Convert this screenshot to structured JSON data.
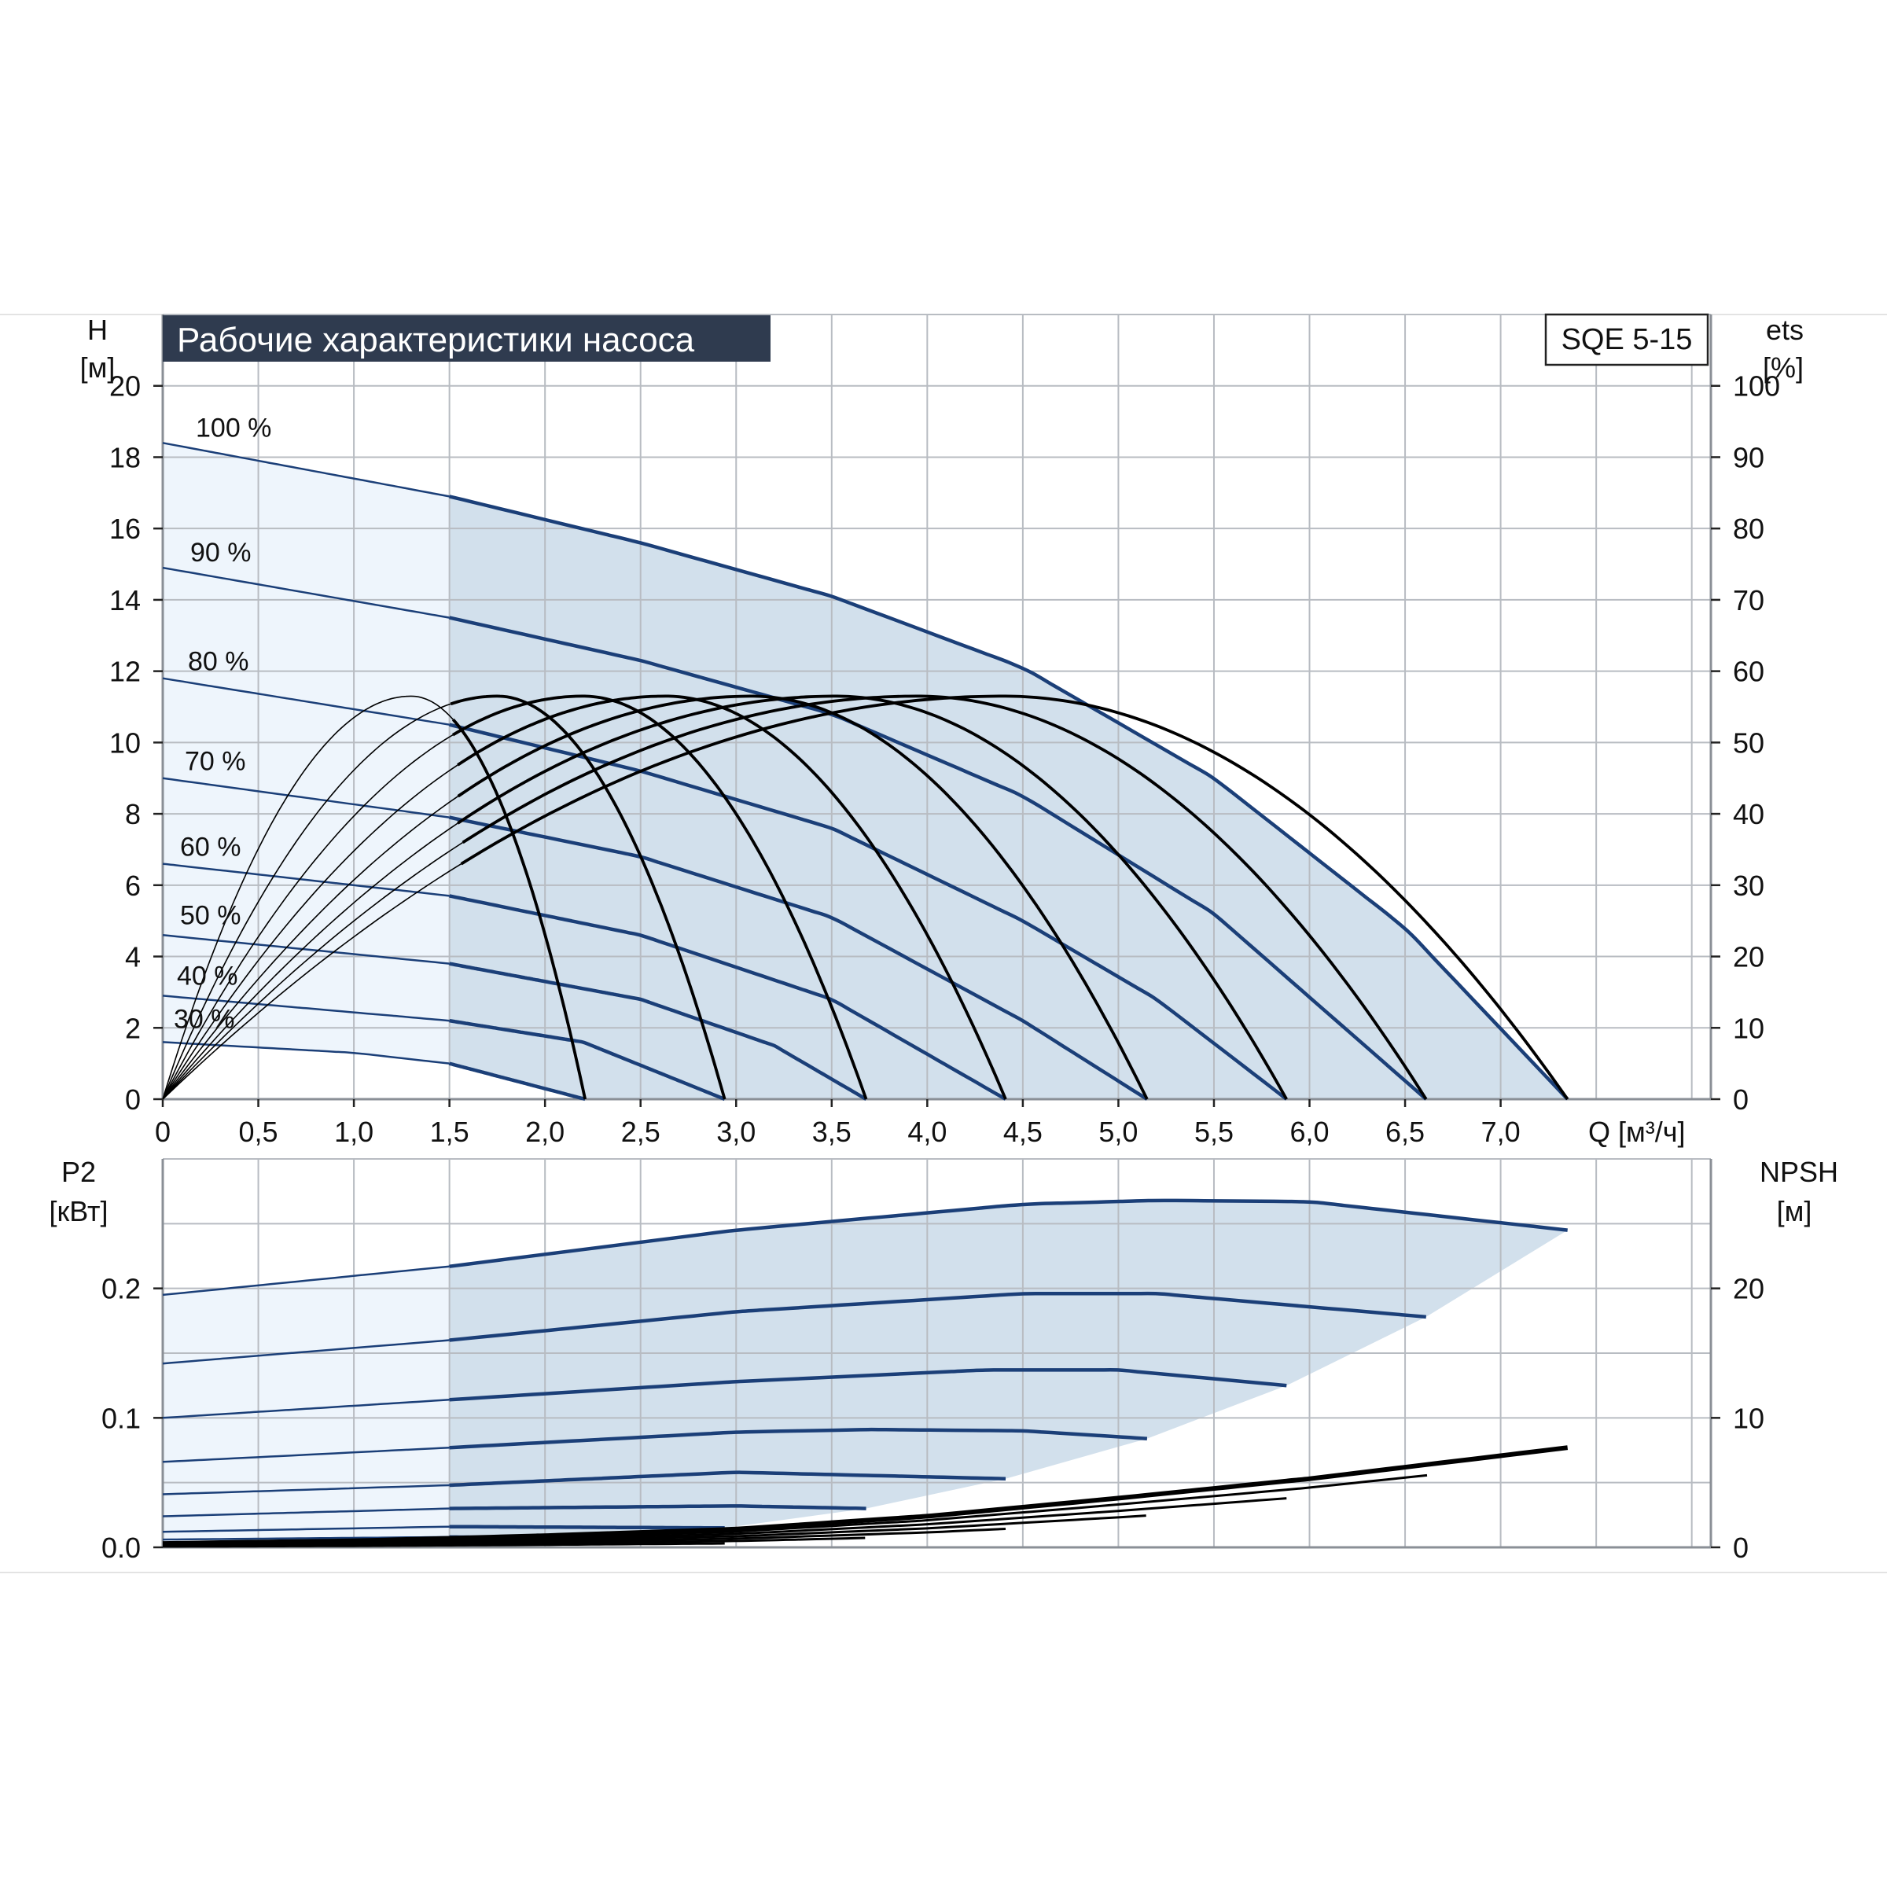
{
  "title": "Рабочие характеристики насоса",
  "model": "SQE 5-15",
  "colors": {
    "title_bg": "#2f3b4f",
    "title_fg": "#ffffff",
    "grid": "#b8bcc2",
    "frame": "#8a8f96",
    "area_light": "#eef5fc",
    "area_dark": "#d2e0ec",
    "pump_curve": "#1b3f78",
    "eff_curve": "#000000",
    "npsh_curve": "#000000"
  },
  "top": {
    "left_label_1": "H",
    "left_label_2": "[м]",
    "right_label_1": "ets",
    "right_label_2": "[%]",
    "x_label": "Q [м³/ч]",
    "x_ticks": [
      "0",
      "0,5",
      "1,0",
      "1,5",
      "2,0",
      "2,5",
      "3,0",
      "3,5",
      "4,0",
      "4,5",
      "5,0",
      "5,5",
      "6,0",
      "6,5",
      "7,0"
    ],
    "left_ticks": [
      "0",
      "2",
      "4",
      "6",
      "8",
      "10",
      "12",
      "14",
      "16",
      "18",
      "20"
    ],
    "right_ticks": [
      "0",
      "10",
      "20",
      "30",
      "40",
      "50",
      "60",
      "70",
      "80",
      "90",
      "100"
    ]
  },
  "bottom": {
    "left_label_1": "P2",
    "left_label_2": "[кВт]",
    "right_label_1": "NPSH",
    "right_label_2": "[м]",
    "left_ticks": [
      "0.0",
      "0.1",
      "0.2"
    ],
    "right_ticks": [
      "0",
      "10",
      "20"
    ]
  },
  "chart_data": [
    {
      "type": "line",
      "xlabel": "Q [м³/ч]",
      "ylabel": "H [м]",
      "y2label": "ets [%]",
      "xlim": [
        0,
        8.1
      ],
      "ylim": [
        0,
        22
      ],
      "y2lim": [
        0,
        110
      ],
      "grid": true,
      "curves": [
        {
          "name": "100 %",
          "x": [
            0,
            1.5,
            2.5,
            3.5,
            4.5,
            5.5,
            6.5,
            7.35
          ],
          "y": [
            18.4,
            16.9,
            15.6,
            14.1,
            12.1,
            9.0,
            4.8,
            0
          ]
        },
        {
          "name": "90 %",
          "x": [
            0,
            1.5,
            2.5,
            3.5,
            4.5,
            5.5,
            6.61
          ],
          "y": [
            14.9,
            13.5,
            12.3,
            10.8,
            8.5,
            5.2,
            0
          ]
        },
        {
          "name": "80 %",
          "x": [
            0,
            1.5,
            2.5,
            3.5,
            4.5,
            5.2,
            5.88
          ],
          "y": [
            11.8,
            10.5,
            9.2,
            7.6,
            5.0,
            2.8,
            0
          ]
        },
        {
          "name": "70 %",
          "x": [
            0,
            1.5,
            2.5,
            3.5,
            4.5,
            5.15
          ],
          "y": [
            9.0,
            7.9,
            6.8,
            5.1,
            2.2,
            0
          ]
        },
        {
          "name": "60 %",
          "x": [
            0,
            1.5,
            2.5,
            3.5,
            4.41
          ],
          "y": [
            6.6,
            5.7,
            4.6,
            2.8,
            0
          ]
        },
        {
          "name": "50 %",
          "x": [
            0,
            1.5,
            2.5,
            3.2,
            3.68
          ],
          "y": [
            4.6,
            3.8,
            2.8,
            1.5,
            0
          ]
        },
        {
          "name": "40 %",
          "x": [
            0,
            1.5,
            2.2,
            2.94
          ],
          "y": [
            2.9,
            2.2,
            1.6,
            0
          ]
        },
        {
          "name": "30 %",
          "x": [
            0,
            1.0,
            1.5,
            2.21
          ],
          "y": [
            1.6,
            1.3,
            1.0,
            0
          ]
        }
      ],
      "efficiency_curves": [
        {
          "peak_x": 1.3,
          "peak_eff": 56.5,
          "end_x": 2.21
        },
        {
          "peak_x": 1.75,
          "peak_eff": 56.5,
          "end_x": 2.94
        },
        {
          "peak_x": 2.2,
          "peak_eff": 56.5,
          "end_x": 3.68
        },
        {
          "peak_x": 2.63,
          "peak_eff": 56.5,
          "end_x": 4.41
        },
        {
          "peak_x": 3.08,
          "peak_eff": 56.5,
          "end_x": 5.15
        },
        {
          "peak_x": 3.52,
          "peak_eff": 56.5,
          "end_x": 5.88
        },
        {
          "peak_x": 3.95,
          "peak_eff": 56.5,
          "end_x": 6.61
        },
        {
          "peak_x": 4.4,
          "peak_eff": 56.5,
          "end_x": 7.35
        }
      ]
    },
    {
      "type": "line",
      "xlabel": "Q [м³/ч]",
      "ylabel": "P2 [кВт]",
      "y2label": "NPSH [м]",
      "xlim": [
        0,
        8.1
      ],
      "ylim": [
        0,
        0.3
      ],
      "y2lim": [
        0,
        30
      ],
      "grid": true,
      "power_curves": [
        {
          "x": [
            0,
            1.5,
            3.0,
            4.5,
            5.2,
            6.0,
            7.35
          ],
          "y": [
            0.195,
            0.217,
            0.245,
            0.265,
            0.268,
            0.267,
            0.245
          ]
        },
        {
          "x": [
            0,
            1.5,
            3.0,
            4.5,
            5.2,
            6.61
          ],
          "y": [
            0.142,
            0.16,
            0.182,
            0.196,
            0.196,
            0.178
          ]
        },
        {
          "x": [
            0,
            1.5,
            3.0,
            4.3,
            5.0,
            5.88
          ],
          "y": [
            0.1,
            0.114,
            0.128,
            0.137,
            0.137,
            0.125
          ]
        },
        {
          "x": [
            0,
            1.5,
            3.0,
            3.7,
            4.5,
            5.15
          ],
          "y": [
            0.066,
            0.077,
            0.089,
            0.091,
            0.09,
            0.084
          ]
        },
        {
          "x": [
            0,
            1.5,
            3.0,
            4.41
          ],
          "y": [
            0.041,
            0.048,
            0.058,
            0.053
          ]
        },
        {
          "x": [
            0,
            1.5,
            3.0,
            3.68
          ],
          "y": [
            0.024,
            0.03,
            0.032,
            0.03
          ]
        },
        {
          "x": [
            0,
            1.5,
            2.94
          ],
          "y": [
            0.012,
            0.016,
            0.015
          ]
        },
        {
          "x": [
            0,
            1.5,
            2.21
          ],
          "y": [
            0.006,
            0.008,
            0.007
          ]
        }
      ],
      "npsh_curve": {
        "x": [
          0,
          1.0,
          2.0,
          3.0,
          4.0,
          5.0,
          6.0,
          7.35
        ],
        "y": [
          0.3,
          0.5,
          0.9,
          1.4,
          2.4,
          3.8,
          5.3,
          7.7
        ]
      }
    }
  ]
}
